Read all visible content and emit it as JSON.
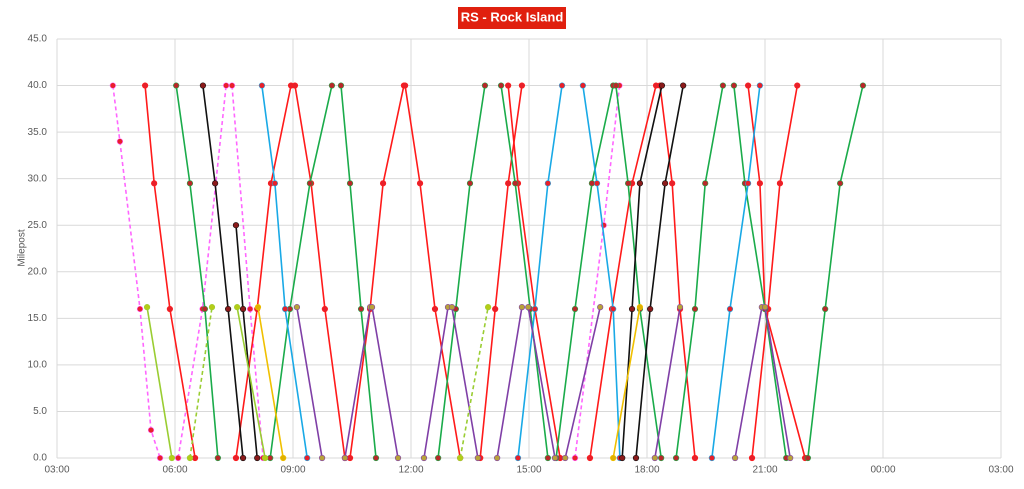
{
  "chart_data": {
    "type": "line",
    "title": "RS - Rock Island",
    "y_label": "Milepost",
    "title_color": "#e0200f",
    "grid": true,
    "xlim": [
      3,
      27
    ],
    "xticks": [
      {
        "value": 3,
        "label": "03:00"
      },
      {
        "value": 6,
        "label": "06:00"
      },
      {
        "value": 9,
        "label": "09:00"
      },
      {
        "value": 12,
        "label": "12:00"
      },
      {
        "value": 15,
        "label": "15:00"
      },
      {
        "value": 18,
        "label": "18:00"
      },
      {
        "value": 21,
        "label": "21:00"
      },
      {
        "value": 24,
        "label": "00:00"
      },
      {
        "value": 27,
        "label": "03:00"
      }
    ],
    "ylim": [
      0,
      45
    ],
    "yticks": [
      {
        "value": 0,
        "label": "0.0"
      },
      {
        "value": 5,
        "label": "5.0"
      },
      {
        "value": 10,
        "label": "10.0"
      },
      {
        "value": 15,
        "label": "15.0"
      },
      {
        "value": 20,
        "label": "20.0"
      },
      {
        "value": 25,
        "label": "25.0"
      },
      {
        "value": 30,
        "label": "30.0"
      },
      {
        "value": 35,
        "label": "35.0"
      },
      {
        "value": 40,
        "label": "40.0"
      },
      {
        "value": 45,
        "label": "45.0"
      }
    ],
    "series": [
      {
        "color": "#ff66ff",
        "marker_color": "#e8202a",
        "dashed": true,
        "x": [
          4.42,
          4.6,
          5.11,
          5.39,
          5.62
        ],
        "values": [
          40,
          34,
          16,
          3,
          0
        ]
      },
      {
        "color": "#ff66ff",
        "marker_color": "#e8202a",
        "dashed": true,
        "x": [
          6.08,
          6.7,
          7.3
        ],
        "values": [
          0,
          16,
          40
        ]
      },
      {
        "color": "#ff66ff",
        "marker_color": "#e8202a",
        "dashed": true,
        "x": [
          7.45,
          7.91,
          8.24
        ],
        "values": [
          40,
          16,
          0
        ]
      },
      {
        "color": "#ff66ff",
        "marker_color": "#e8202a",
        "dashed": true,
        "x": [
          16.17,
          16.9,
          17.3
        ],
        "values": [
          0,
          25,
          40
        ]
      },
      {
        "color": "#ff1a1a",
        "marker_color": "#e8202a",
        "dashed": false,
        "x": [
          5.24,
          5.47,
          5.87,
          6.51
        ],
        "values": [
          40,
          29.5,
          16,
          0
        ]
      },
      {
        "color": "#ff1a1a",
        "marker_color": "#e8202a",
        "dashed": false,
        "x": [
          7.55,
          8.09,
          8.44,
          8.95
        ],
        "values": [
          0,
          16,
          29.5,
          40
        ]
      },
      {
        "color": "#ff1a1a",
        "marker_color": "#e8202a",
        "dashed": false,
        "x": [
          9.05,
          9.46,
          9.81,
          10.32
        ],
        "values": [
          40,
          29.5,
          16,
          0
        ]
      },
      {
        "color": "#ff1a1a",
        "marker_color": "#e8202a",
        "dashed": false,
        "x": [
          10.45,
          10.96,
          11.29,
          11.82
        ],
        "values": [
          0,
          16,
          29.5,
          40
        ]
      },
      {
        "color": "#ff1a1a",
        "marker_color": "#e8202a",
        "dashed": false,
        "x": [
          11.85,
          12.23,
          12.61,
          13.25
        ],
        "values": [
          40,
          29.5,
          16,
          0
        ]
      },
      {
        "color": "#ff1a1a",
        "marker_color": "#e8202a",
        "dashed": false,
        "x": [
          13.76,
          14.14,
          14.47,
          14.82
        ],
        "values": [
          0,
          16,
          29.5,
          40
        ]
      },
      {
        "color": "#ff1a1a",
        "marker_color": "#e8202a",
        "dashed": false,
        "x": [
          14.47,
          14.72,
          15.15,
          15.79
        ],
        "values": [
          40,
          29.5,
          16,
          0
        ]
      },
      {
        "color": "#ff1a1a",
        "marker_color": "#e8202a",
        "dashed": false,
        "x": [
          16.55,
          17.11,
          17.62,
          18.23
        ],
        "values": [
          0,
          16,
          29.5,
          40
        ]
      },
      {
        "color": "#ff1a1a",
        "marker_color": "#e8202a",
        "dashed": false,
        "x": [
          18.33,
          18.64,
          18.84,
          19.22
        ],
        "values": [
          40,
          29.5,
          16,
          0
        ]
      },
      {
        "color": "#ff1a1a",
        "marker_color": "#e8202a",
        "dashed": false,
        "x": [
          20.67,
          21.08,
          21.38,
          21.82
        ],
        "values": [
          0,
          16,
          29.5,
          40
        ]
      },
      {
        "color": "#ff1a1a",
        "marker_color": "#e8202a",
        "dashed": false,
        "x": [
          20.57,
          20.87,
          21.0,
          22.02
        ],
        "values": [
          40,
          29.5,
          16,
          0
        ]
      },
      {
        "color": "#1aab4a",
        "marker_color": "#b8282a",
        "dashed": false,
        "x": [
          6.03,
          6.38,
          6.76,
          7.09
        ],
        "values": [
          40,
          29.5,
          16,
          0
        ]
      },
      {
        "color": "#1aab4a",
        "marker_color": "#b8282a",
        "dashed": false,
        "x": [
          8.42,
          8.92,
          9.43,
          9.99
        ],
        "values": [
          0,
          16,
          29.5,
          40
        ]
      },
      {
        "color": "#1aab4a",
        "marker_color": "#b8282a",
        "dashed": false,
        "x": [
          10.22,
          10.45,
          10.73,
          11.11
        ],
        "values": [
          40,
          29.5,
          16,
          0
        ]
      },
      {
        "color": "#1aab4a",
        "marker_color": "#b8282a",
        "dashed": false,
        "x": [
          12.69,
          13.14,
          13.5,
          13.88
        ],
        "values": [
          0,
          16,
          29.5,
          40
        ]
      },
      {
        "color": "#1aab4a",
        "marker_color": "#b8282a",
        "dashed": false,
        "x": [
          14.29,
          14.65,
          15.03,
          15.48
        ],
        "values": [
          40,
          29.5,
          16,
          0
        ]
      },
      {
        "color": "#1aab4a",
        "marker_color": "#b8282a",
        "dashed": false,
        "x": [
          15.69,
          16.17,
          16.6,
          17.14
        ],
        "values": [
          0,
          16,
          29.5,
          40
        ]
      },
      {
        "color": "#1aab4a",
        "marker_color": "#b8282a",
        "dashed": false,
        "x": [
          17.21,
          17.52,
          17.82,
          18.36
        ],
        "values": [
          40,
          29.5,
          16,
          0
        ]
      },
      {
        "color": "#1aab4a",
        "marker_color": "#b8282a",
        "dashed": false,
        "x": [
          18.74,
          19.22,
          19.48,
          19.93
        ],
        "values": [
          0,
          16,
          29.5,
          40
        ]
      },
      {
        "color": "#1aab4a",
        "marker_color": "#b8282a",
        "dashed": false,
        "x": [
          20.21,
          20.49,
          21.0,
          21.54
        ],
        "values": [
          40,
          29.5,
          16,
          0
        ]
      },
      {
        "color": "#1aab4a",
        "marker_color": "#b8282a",
        "dashed": false,
        "x": [
          22.09,
          22.53,
          22.91,
          23.49
        ],
        "values": [
          0,
          16,
          29.5,
          40
        ]
      },
      {
        "color": "#19a9e6",
        "marker_color": "#e8202a",
        "dashed": false,
        "x": [
          8.21,
          8.54,
          8.8,
          9.36
        ],
        "values": [
          40,
          29.5,
          16,
          0
        ]
      },
      {
        "color": "#19a9e6",
        "marker_color": "#e8202a",
        "dashed": false,
        "x": [
          14.72,
          15.15,
          15.48,
          15.84
        ],
        "values": [
          0,
          16,
          29.5,
          40
        ]
      },
      {
        "color": "#19a9e6",
        "marker_color": "#e8202a",
        "dashed": false,
        "x": [
          16.37,
          16.73,
          17.14,
          17.31
        ],
        "values": [
          40,
          29.5,
          16,
          0
        ]
      },
      {
        "color": "#19a9e6",
        "marker_color": "#e8202a",
        "dashed": false,
        "x": [
          19.65,
          20.11,
          20.57,
          20.87
        ],
        "values": [
          0,
          16,
          29.5,
          40
        ]
      },
      {
        "color": "#111111",
        "marker_color": "#8b1a1a",
        "dashed": false,
        "x": [
          6.71,
          7.02,
          7.35,
          7.73
        ],
        "values": [
          40,
          29.5,
          16,
          0
        ]
      },
      {
        "color": "#111111",
        "marker_color": "#8b1a1a",
        "dashed": false,
        "x": [
          7.55,
          7.73,
          8.09
        ],
        "values": [
          25,
          16,
          0
        ]
      },
      {
        "color": "#111111",
        "marker_color": "#8b1a1a",
        "dashed": false,
        "x": [
          17.72,
          18.08,
          18.46,
          18.92
        ],
        "values": [
          0,
          16,
          29.5,
          40
        ]
      },
      {
        "color": "#111111",
        "marker_color": "#8b1a1a",
        "dashed": false,
        "x": [
          17.37,
          17.62,
          17.82,
          18.38
        ],
        "values": [
          0,
          16,
          29.5,
          40
        ]
      },
      {
        "color": "#7f3fa6",
        "marker_color": "#b8a23a",
        "dashed": false,
        "x": [
          9.1,
          9.74
        ],
        "values": [
          16.2,
          0
        ]
      },
      {
        "color": "#7f3fa6",
        "marker_color": "#b8a23a",
        "dashed": false,
        "x": [
          10.32,
          10.96
        ],
        "values": [
          0,
          16.2
        ]
      },
      {
        "color": "#7f3fa6",
        "marker_color": "#b8a23a",
        "dashed": false,
        "x": [
          11.01,
          11.67
        ],
        "values": [
          16.2,
          0
        ]
      },
      {
        "color": "#7f3fa6",
        "marker_color": "#b8a23a",
        "dashed": false,
        "x": [
          12.33,
          12.94
        ],
        "values": [
          0,
          16.2
        ]
      },
      {
        "color": "#7f3fa6",
        "marker_color": "#b8a23a",
        "dashed": false,
        "x": [
          13.04,
          13.7
        ],
        "values": [
          16.2,
          0
        ]
      },
      {
        "color": "#7f3fa6",
        "marker_color": "#b8a23a",
        "dashed": false,
        "x": [
          14.19,
          14.82
        ],
        "values": [
          0,
          16.2
        ]
      },
      {
        "color": "#7f3fa6",
        "marker_color": "#b8a23a",
        "dashed": false,
        "x": [
          14.98,
          15.66
        ],
        "values": [
          16.2,
          0
        ]
      },
      {
        "color": "#7f3fa6",
        "marker_color": "#b8a23a",
        "dashed": false,
        "x": [
          15.92,
          16.81
        ],
        "values": [
          0,
          16.2
        ]
      },
      {
        "color": "#7f3fa6",
        "marker_color": "#b8a23a",
        "dashed": false,
        "x": [
          18.2,
          18.84
        ],
        "values": [
          0,
          16.2
        ]
      },
      {
        "color": "#7f3fa6",
        "marker_color": "#b8a23a",
        "dashed": false,
        "x": [
          20.24,
          20.92
        ],
        "values": [
          0,
          16.2
        ]
      },
      {
        "color": "#7f3fa6",
        "marker_color": "#b8a23a",
        "dashed": false,
        "x": [
          21.0,
          21.64
        ],
        "values": [
          16.2,
          0
        ]
      },
      {
        "color": "#9acd32",
        "marker_color": "#b5cc18",
        "dashed": false,
        "x": [
          5.29,
          5.92
        ],
        "values": [
          16.2,
          0
        ]
      },
      {
        "color": "#9acd32",
        "marker_color": "#b5cc18",
        "dashed": true,
        "x": [
          6.38,
          6.94
        ],
        "values": [
          0,
          16.2
        ]
      },
      {
        "color": "#9acd32",
        "marker_color": "#b5cc18",
        "dashed": false,
        "x": [
          7.58,
          8.29
        ],
        "values": [
          16.2,
          0
        ]
      },
      {
        "color": "#9acd32",
        "marker_color": "#b5cc18",
        "dashed": true,
        "x": [
          13.25,
          13.96
        ],
        "values": [
          0,
          16.2
        ]
      },
      {
        "color": "#f0c000",
        "marker_color": "#e0b000",
        "dashed": false,
        "x": [
          8.11,
          8.75
        ],
        "values": [
          16.2,
          0
        ]
      },
      {
        "color": "#f0c000",
        "marker_color": "#e0b000",
        "dashed": false,
        "x": [
          17.14,
          17.82
        ],
        "values": [
          0,
          16.2
        ]
      }
    ]
  }
}
